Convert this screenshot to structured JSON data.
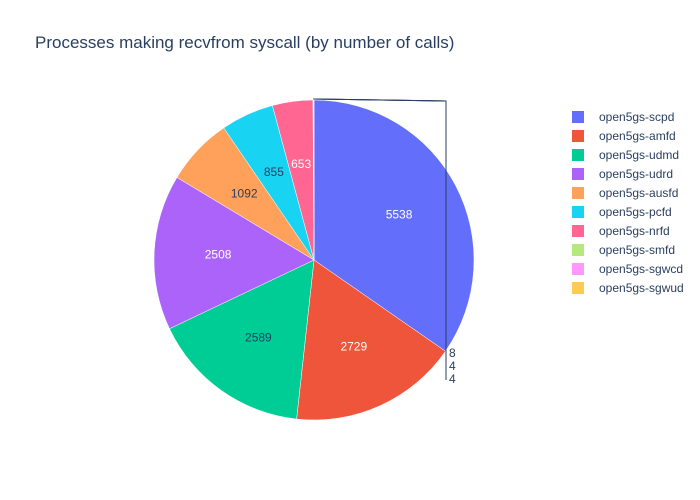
{
  "chart_data": {
    "type": "pie",
    "title": "Processes making recvfrom syscall (by number of calls)",
    "legend_position": "right",
    "slices": [
      {
        "label": "open5gs-scpd",
        "value": 5538,
        "color": "#636efa"
      },
      {
        "label": "open5gs-amfd",
        "value": 2729,
        "color": "#EF553B"
      },
      {
        "label": "open5gs-udmd",
        "value": 2589,
        "color": "#00cc96"
      },
      {
        "label": "open5gs-udrd",
        "value": 2508,
        "color": "#ab63fa"
      },
      {
        "label": "open5gs-ausfd",
        "value": 1092,
        "color": "#FFA15A"
      },
      {
        "label": "open5gs-pcfd",
        "value": 855,
        "color": "#19d3f3"
      },
      {
        "label": "open5gs-nrfd",
        "value": 653,
        "color": "#FF6692"
      },
      {
        "label": "open5gs-smfd",
        "value": 8,
        "color": "#B6E880"
      },
      {
        "label": "open5gs-sgwcd",
        "value": 4,
        "color": "#FF97FF"
      },
      {
        "label": "open5gs-sgwud",
        "value": 4,
        "color": "#FECB52"
      }
    ]
  }
}
